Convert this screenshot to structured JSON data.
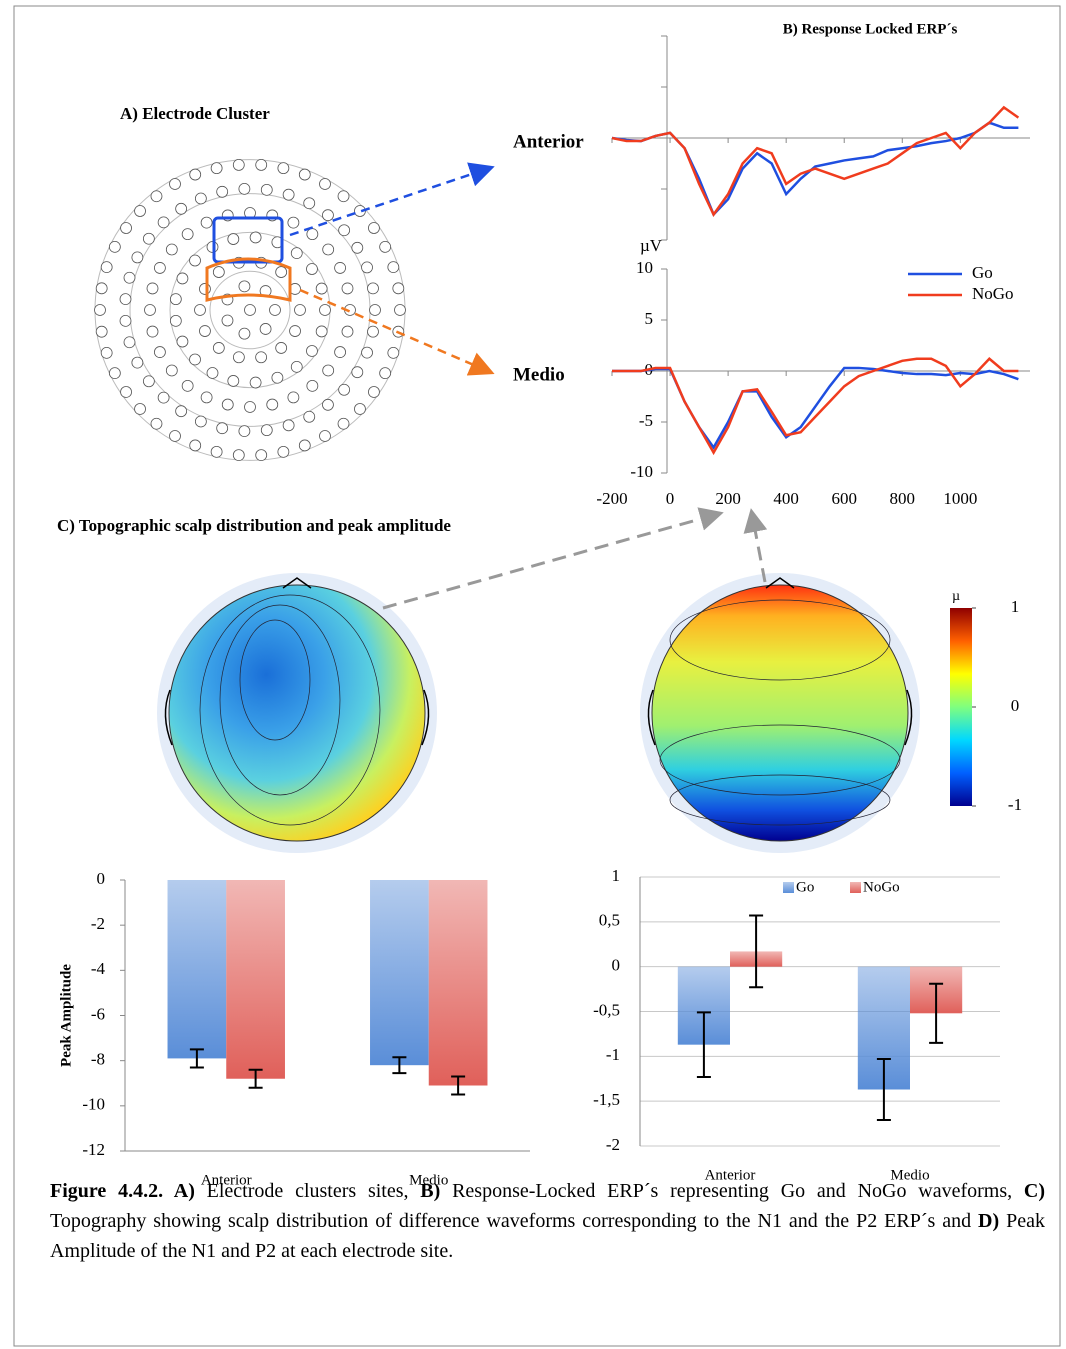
{
  "panel_a_title": "A)  Electrode Cluster",
  "panel_c_title": "C)  Topographic scalp distribution and peak amplitude",
  "colorbar": {
    "label": "µ",
    "lim": [
      -1,
      1
    ],
    "ticks": [
      1,
      0,
      -1
    ],
    "colors": [
      "#00008f",
      "#0060ff",
      "#00d8ff",
      "#7fff7f",
      "#ffff00",
      "#ff6000",
      "#8f0000"
    ]
  },
  "chart_data": [
    {
      "type": "line",
      "title": "B)  Response Locked ERP´s",
      "panel_label": "Anterior",
      "x": [
        -200,
        -150,
        -100,
        -50,
        0,
        50,
        100,
        150,
        200,
        250,
        300,
        350,
        400,
        450,
        500,
        550,
        600,
        650,
        700,
        750,
        800,
        850,
        900,
        950,
        1000,
        1050,
        1100,
        1150,
        1200
      ],
      "xlim": [
        -200,
        1240
      ],
      "ylim": [
        -10,
        10
      ],
      "series": [
        {
          "color": "#1f4fe0",
          "values": [
            0,
            -0.2,
            -0.3,
            0.2,
            0.5,
            -1,
            -4,
            -7.5,
            -6,
            -3,
            -1.5,
            -2.5,
            -5.5,
            -4,
            -2.8,
            -2.5,
            -2.2,
            -2,
            -1.8,
            -1.2,
            -1,
            -0.8,
            -0.5,
            -0.3,
            0,
            0.5,
            1.5,
            1,
            1
          ]
        },
        {
          "color": "#f03c1e",
          "values": [
            0,
            -0.3,
            -0.3,
            0.2,
            0.5,
            -1,
            -4.5,
            -7.5,
            -5.5,
            -2.5,
            -1,
            -1.5,
            -4.5,
            -3.5,
            -3,
            -3.5,
            -4,
            -3.5,
            -3,
            -2.5,
            -1.5,
            -0.5,
            0,
            0.5,
            -1,
            0.5,
            1.5,
            3,
            2
          ]
        }
      ]
    },
    {
      "type": "line",
      "panel_label": "Medio",
      "ylabel": "µV",
      "x": [
        -200,
        -150,
        -100,
        -50,
        0,
        50,
        100,
        150,
        200,
        250,
        300,
        350,
        400,
        450,
        500,
        550,
        600,
        650,
        700,
        750,
        800,
        850,
        900,
        950,
        1000,
        1050,
        1100,
        1150,
        1200
      ],
      "xlim": [
        -200,
        1240
      ],
      "xticks": [
        -200,
        0,
        200,
        400,
        600,
        800,
        1000
      ],
      "ylim": [
        -10,
        10
      ],
      "yticks": [
        10,
        5,
        0,
        -5,
        -10
      ],
      "legend": "upper right",
      "series": [
        {
          "name": "Go",
          "color": "#1f4fe0",
          "values": [
            0,
            0,
            0,
            0.2,
            0.2,
            -3,
            -5.5,
            -7.5,
            -5,
            -2,
            -2,
            -4.5,
            -6.5,
            -5.5,
            -3.5,
            -1.5,
            0.3,
            0.3,
            0.2,
            0,
            -0.2,
            -0.3,
            -0.3,
            -0.4,
            -0.2,
            -0.3,
            0,
            -0.3,
            -0.8
          ]
        },
        {
          "name": "NoGo",
          "color": "#f03c1e",
          "values": [
            0,
            0,
            0,
            0.3,
            0.3,
            -3,
            -5.5,
            -8,
            -5.5,
            -2,
            -1.8,
            -4,
            -6.3,
            -6,
            -4.5,
            -3,
            -1.5,
            -0.5,
            0,
            0.5,
            1,
            1.2,
            1.2,
            0.5,
            -1.5,
            -0.3,
            1.2,
            0,
            0
          ]
        }
      ]
    },
    {
      "type": "bar",
      "ylabel": "Peak Amplitude",
      "categories": [
        "Anterior",
        "Medio"
      ],
      "ylim": [
        -12,
        0
      ],
      "yticks": [
        0,
        -2,
        -4,
        -6,
        -8,
        -10,
        -12
      ],
      "series": [
        {
          "color": "#5a8ed8",
          "values": [
            -7.9,
            -8.2
          ],
          "errors": [
            0.4,
            0.35
          ]
        },
        {
          "color": "#e0605a",
          "values": [
            -8.8,
            -9.1
          ],
          "errors": [
            0.4,
            0.4
          ]
        }
      ]
    },
    {
      "type": "bar",
      "categories": [
        "Anterior",
        "Medio"
      ],
      "ylim": [
        -2,
        1
      ],
      "grid": true,
      "legend": "top",
      "yticks": [
        1,
        {
          "value": 0.5,
          "label": "0,5"
        },
        0,
        {
          "value": -0.5,
          "label": "-0,5"
        },
        -1,
        {
          "value": -1.5,
          "label": "-1,5"
        },
        -2
      ],
      "series": [
        {
          "name": "Go",
          "color": "#5a8ed8",
          "values": [
            -0.87,
            -1.37
          ],
          "errors": [
            0.36,
            0.34
          ]
        },
        {
          "name": "NoGo",
          "color": "#e0605a",
          "values": [
            0.17,
            -0.52
          ],
          "errors": [
            0.4,
            0.33
          ]
        }
      ]
    }
  ],
  "caption": [
    {
      "text": "Figure 4.4.2. ",
      "bold": true
    },
    {
      "text": "A)",
      "bold": true
    },
    {
      "text": " Electrode clusters sites, ",
      "bold": false
    },
    {
      "text": "B)",
      "bold": true
    },
    {
      "text": " Response-Locked ERP´s representing Go and NoGo waveforms, ",
      "bold": false
    },
    {
      "text": "C)",
      "bold": true
    },
    {
      "text": " Topography showing scalp distribution of difference waveforms corresponding to the N1 and the P2 ERP´s and ",
      "bold": false
    },
    {
      "text": "D)",
      "bold": true
    },
    {
      "text": " Peak Amplitude of the N1 and P2 at each electrode site.",
      "bold": false
    }
  ]
}
